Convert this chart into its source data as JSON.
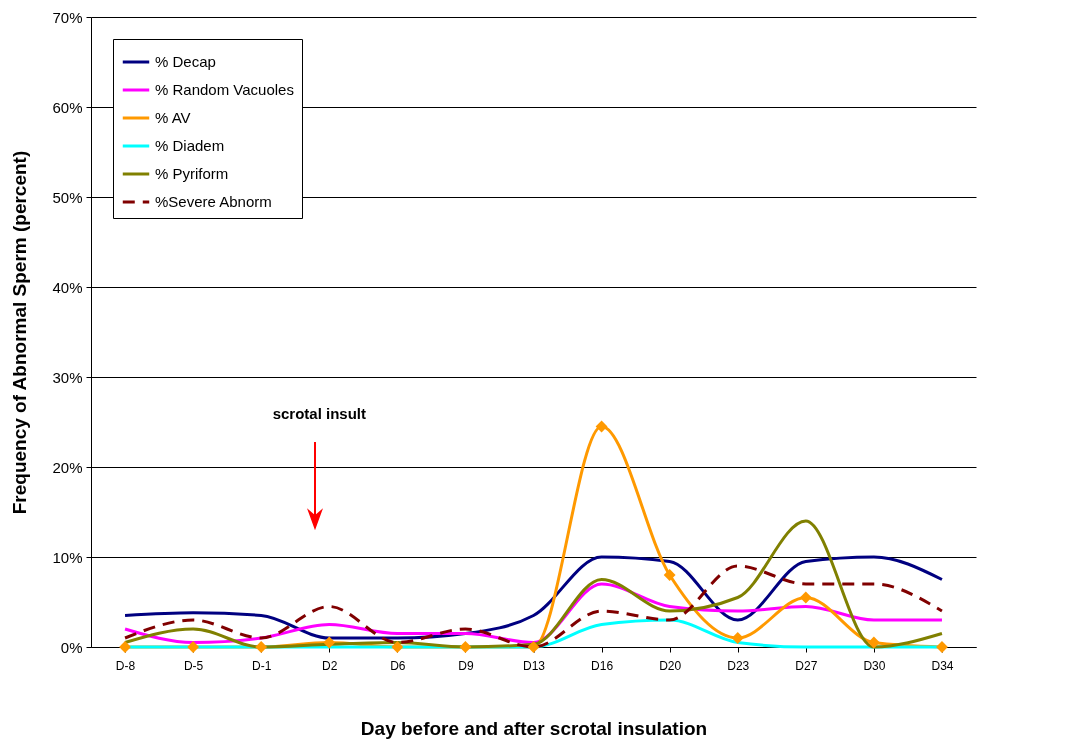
{
  "chart_data": {
    "type": "line",
    "xlabel": "Day before and after scrotal insulation",
    "ylabel": "Frequency of Abnormal Sperm (percent)",
    "categories": [
      "D-8",
      "D-5",
      "D-1",
      "D2",
      "D6",
      "D9",
      "D13",
      "D16",
      "D20",
      "D23",
      "D27",
      "D30",
      "D34"
    ],
    "ylim": [
      0,
      70
    ],
    "yticks": [
      {
        "value": 0,
        "label": "0%"
      },
      {
        "value": 10,
        "label": "10%"
      },
      {
        "value": 20,
        "label": "20%"
      },
      {
        "value": 30,
        "label": "30%"
      },
      {
        "value": 40,
        "label": "40%"
      },
      {
        "value": 50,
        "label": "50%"
      },
      {
        "value": 60,
        "label": "60%"
      },
      {
        "value": 70,
        "label": "70%"
      }
    ],
    "grid": "y",
    "legend": "top left",
    "annotations": [
      "scrotal insult"
    ],
    "series": [
      {
        "name": "% Decap",
        "color": "#000080",
        "values": [
          3.5,
          3.8,
          3.5,
          1,
          1,
          1.5,
          3.5,
          10,
          9.5,
          3,
          9.5,
          10,
          7.5
        ]
      },
      {
        "name": "% Random Vacuoles",
        "color": "#ff00ff",
        "values": [
          2,
          0.5,
          1,
          2.5,
          1.5,
          1.5,
          0.5,
          7,
          4.5,
          4,
          4.5,
          3,
          3
        ]
      },
      {
        "name": "% AV",
        "color": "#ff9900",
        "marker": "diamond",
        "values": [
          0,
          0,
          0,
          0.5,
          0,
          0,
          0,
          24.5,
          8,
          1,
          5.5,
          0.5,
          0
        ]
      },
      {
        "name": "% Diadem",
        "color": "#00ffff",
        "values": [
          0,
          0,
          0,
          0,
          0,
          0,
          0,
          2.5,
          3,
          0.5,
          0,
          0,
          0
        ]
      },
      {
        "name": "% Pyriform",
        "color": "#808000",
        "values": [
          0.5,
          2,
          0,
          0.3,
          0.5,
          0,
          0.3,
          7.5,
          4,
          5.5,
          14,
          0,
          1.5
        ]
      },
      {
        "name": "%Severe Abnorm",
        "color": "#800000",
        "line_style": "dashed",
        "values": [
          1,
          3,
          1,
          4.5,
          0.5,
          2,
          0,
          4,
          3,
          9,
          7,
          7,
          4
        ]
      }
    ]
  }
}
